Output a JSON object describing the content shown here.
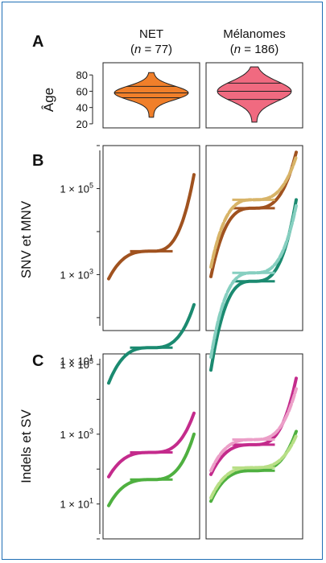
{
  "panels": {
    "a": "A",
    "b": "B",
    "c": "C"
  },
  "columns": [
    {
      "name": "NET",
      "n_label": "(",
      "n_var": "n",
      "n_value": " = 77)"
    },
    {
      "name": "Mélanomes",
      "n_label": "(",
      "n_var": "n",
      "n_value": " = 186)"
    }
  ],
  "colors": {
    "net_orange": "#f07f2a",
    "mel_pink": "#f06a80",
    "snv_brown": "#a0521f",
    "snv_tan": "#d8b468",
    "mnv_teal": "#1b8a70",
    "mnv_teal_light": "#86cfc0",
    "indel_magenta": "#c42b8c",
    "indel_pink": "#ec9fc8",
    "sv_green": "#4fb040",
    "sv_green_light": "#b8df86"
  },
  "chart_data": [
    {
      "type": "violin",
      "panel": "A",
      "ylabel": "Âge",
      "yticks": [
        20,
        40,
        60,
        80
      ],
      "ylim": [
        15,
        95
      ],
      "groups": [
        {
          "name": "NET",
          "n": 77,
          "min": 28,
          "q1": 52,
          "median": 58,
          "q3": 66,
          "max": 83,
          "color": "#f07f2a"
        },
        {
          "name": "Mélanomes",
          "n": 186,
          "min": 22,
          "q1": 50,
          "median": 60,
          "q3": 70,
          "max": 90,
          "color": "#f06a80"
        }
      ]
    },
    {
      "type": "line",
      "panel": "B",
      "ylabel": "SNV et MNV",
      "yscale": "log",
      "ylim": [
        50,
        1000000
      ],
      "yticks": [
        "1 × 10",
        "1 × 10",
        "1 × 10"
      ],
      "ytick_exponents": [
        "5",
        "3",
        "1"
      ],
      "ytick_values": [
        100000,
        1000,
        10
      ],
      "groups": [
        {
          "name": "NET",
          "series": [
            {
              "name": "SNV",
              "color": "#a0521f",
              "median": 3500,
              "min": 800,
              "max": 210000
            },
            {
              "name": "MNV",
              "color": "#1b8a70",
              "median": 20,
              "min": 3,
              "max": 200
            }
          ]
        },
        {
          "name": "Mélanomes",
          "series": [
            {
              "name": "SNV",
              "color": "#a0521f",
              "median": 35000,
              "min": 900,
              "max": 700000
            },
            {
              "name": "SNV",
              "color": "#d8b468",
              "median": 55000,
              "min": 1500,
              "max": 550000
            },
            {
              "name": "MNV",
              "color": "#1b8a70",
              "median": 700,
              "min": 6,
              "max": 55000
            },
            {
              "name": "MNV",
              "color": "#86cfc0",
              "median": 1100,
              "min": 12,
              "max": 40000
            }
          ]
        }
      ]
    },
    {
      "type": "line",
      "panel": "C",
      "ylabel": "Indels et SV",
      "yscale": "log",
      "ylim": [
        1,
        200000
      ],
      "yticks": [
        "1 × 10",
        "1 × 10",
        "1 × 10"
      ],
      "ytick_exponents": [
        "5",
        "3",
        "1"
      ],
      "ytick_values": [
        100000,
        1000,
        10
      ],
      "groups": [
        {
          "name": "NET",
          "series": [
            {
              "name": "Indels",
              "color": "#c42b8c",
              "median": 300,
              "min": 60,
              "max": 4000
            },
            {
              "name": "SV",
              "color": "#4fb040",
              "median": 50,
              "min": 9,
              "max": 1000
            }
          ]
        },
        {
          "name": "Mélanomes",
          "series": [
            {
              "name": "Indels",
              "color": "#c42b8c",
              "median": 500,
              "min": 70,
              "max": 40000
            },
            {
              "name": "Indels",
              "color": "#ec9fc8",
              "median": 700,
              "min": 90,
              "max": 20000
            },
            {
              "name": "SV",
              "color": "#4fb040",
              "median": 90,
              "min": 12,
              "max": 1200
            },
            {
              "name": "SV",
              "color": "#b8df86",
              "median": 110,
              "min": 15,
              "max": 900
            }
          ]
        }
      ]
    }
  ]
}
